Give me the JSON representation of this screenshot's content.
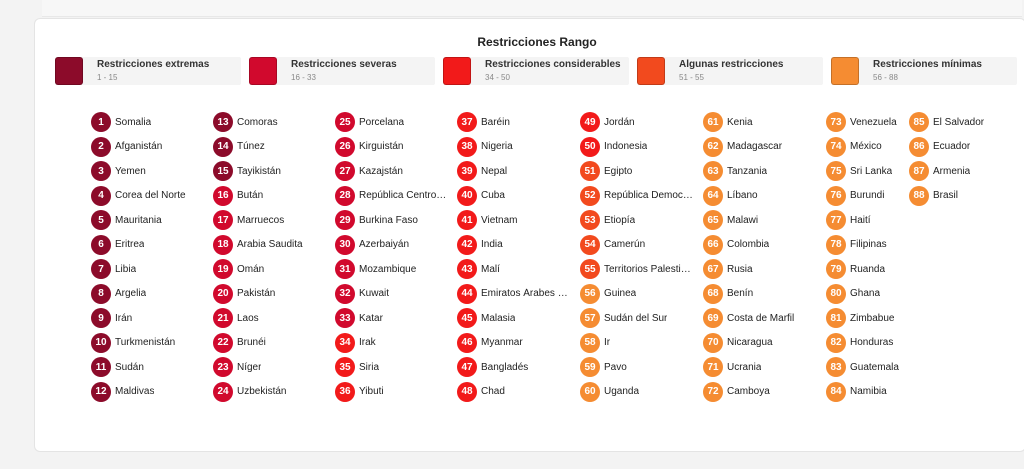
{
  "legend": {
    "title": "Restricciones Rango",
    "items": [
      {
        "label": "Restricciones extremas",
        "range": "1 - 15",
        "color": "#8c0b2a"
      },
      {
        "label": "Restricciones severas",
        "range": "16 - 33",
        "color": "#d1092d"
      },
      {
        "label": "Restricciones considerables",
        "range": "34 - 50",
        "color": "#f21a1a"
      },
      {
        "label": "Algunas restricciones",
        "range": "51 - 55",
        "color": "#f24a1e"
      },
      {
        "label": "Restricciones mínimas",
        "range": "56 - 88",
        "color": "#f58c32"
      }
    ]
  },
  "countries": [
    {
      "rank": "1",
      "name": "Somalia",
      "tier": 0
    },
    {
      "rank": "2",
      "name": "Afganistán",
      "tier": 0
    },
    {
      "rank": "3",
      "name": "Yemen",
      "tier": 0
    },
    {
      "rank": "4",
      "name": "Corea del Norte",
      "tier": 0
    },
    {
      "rank": "5",
      "name": "Mauritania",
      "tier": 0
    },
    {
      "rank": "6",
      "name": "Eritrea",
      "tier": 0
    },
    {
      "rank": "7",
      "name": "Libia",
      "tier": 0
    },
    {
      "rank": "8",
      "name": "Argelia",
      "tier": 0
    },
    {
      "rank": "9",
      "name": "Irán",
      "tier": 0
    },
    {
      "rank": "10",
      "name": "Turkmenistán",
      "tier": 0
    },
    {
      "rank": "11",
      "name": "Sudán",
      "tier": 0
    },
    {
      "rank": "12",
      "name": "Maldivas",
      "tier": 0
    },
    {
      "rank": "13",
      "name": "Comoras",
      "tier": 0
    },
    {
      "rank": "14",
      "name": "Túnez",
      "tier": 0
    },
    {
      "rank": "15",
      "name": "Tayikistán",
      "tier": 0
    },
    {
      "rank": "16",
      "name": "Bután",
      "tier": 1
    },
    {
      "rank": "17",
      "name": "Marruecos",
      "tier": 1
    },
    {
      "rank": "18",
      "name": "Arabia Saudita",
      "tier": 1
    },
    {
      "rank": "19",
      "name": "Omán",
      "tier": 1
    },
    {
      "rank": "20",
      "name": "Pakistán",
      "tier": 1
    },
    {
      "rank": "21",
      "name": "Laos",
      "tier": 1
    },
    {
      "rank": "22",
      "name": "Brunéi",
      "tier": 1
    },
    {
      "rank": "23",
      "name": "Níger",
      "tier": 1
    },
    {
      "rank": "24",
      "name": "Uzbekistán",
      "tier": 1
    },
    {
      "rank": "25",
      "name": "Porcelana",
      "tier": 1
    },
    {
      "rank": "26",
      "name": "Kirguistán",
      "tier": 1
    },
    {
      "rank": "27",
      "name": "Kazajstán",
      "tier": 1
    },
    {
      "rank": "28",
      "name": "República Centro…",
      "tier": 1
    },
    {
      "rank": "29",
      "name": "Burkina Faso",
      "tier": 1
    },
    {
      "rank": "30",
      "name": "Azerbaiyán",
      "tier": 1
    },
    {
      "rank": "31",
      "name": "Mozambique",
      "tier": 1
    },
    {
      "rank": "32",
      "name": "Kuwait",
      "tier": 1
    },
    {
      "rank": "33",
      "name": "Katar",
      "tier": 1
    },
    {
      "rank": "34",
      "name": "Irak",
      "tier": 2
    },
    {
      "rank": "35",
      "name": "Siria",
      "tier": 2
    },
    {
      "rank": "36",
      "name": "Yibuti",
      "tier": 2
    },
    {
      "rank": "37",
      "name": "Baréin",
      "tier": 2
    },
    {
      "rank": "38",
      "name": "Nigeria",
      "tier": 2
    },
    {
      "rank": "39",
      "name": "Nepal",
      "tier": 2
    },
    {
      "rank": "40",
      "name": "Cuba",
      "tier": 2
    },
    {
      "rank": "41",
      "name": "Vietnam",
      "tier": 2
    },
    {
      "rank": "42",
      "name": "India",
      "tier": 2
    },
    {
      "rank": "43",
      "name": "Malí",
      "tier": 2
    },
    {
      "rank": "44",
      "name": "Emiratos Árabes …",
      "tier": 2
    },
    {
      "rank": "45",
      "name": "Malasia",
      "tier": 2
    },
    {
      "rank": "46",
      "name": "Myanmar",
      "tier": 2
    },
    {
      "rank": "47",
      "name": "Bangladés",
      "tier": 2
    },
    {
      "rank": "48",
      "name": "Chad",
      "tier": 2
    },
    {
      "rank": "49",
      "name": "Jordán",
      "tier": 2
    },
    {
      "rank": "50",
      "name": "Indonesia",
      "tier": 2
    },
    {
      "rank": "51",
      "name": "Egipto",
      "tier": 3
    },
    {
      "rank": "52",
      "name": "República Democ…",
      "tier": 3
    },
    {
      "rank": "53",
      "name": "Etiopía",
      "tier": 3
    },
    {
      "rank": "54",
      "name": "Camerún",
      "tier": 3
    },
    {
      "rank": "55",
      "name": "Territorios Palesti…",
      "tier": 3
    },
    {
      "rank": "56",
      "name": "Guinea",
      "tier": 4
    },
    {
      "rank": "57",
      "name": "Sudán del Sur",
      "tier": 4
    },
    {
      "rank": "58",
      "name": "Ir",
      "tier": 4
    },
    {
      "rank": "59",
      "name": "Pavo",
      "tier": 4
    },
    {
      "rank": "60",
      "name": "Uganda",
      "tier": 4
    },
    {
      "rank": "61",
      "name": "Kenia",
      "tier": 4
    },
    {
      "rank": "62",
      "name": "Madagascar",
      "tier": 4
    },
    {
      "rank": "63",
      "name": "Tanzania",
      "tier": 4
    },
    {
      "rank": "64",
      "name": "Líbano",
      "tier": 4
    },
    {
      "rank": "65",
      "name": "Malawi",
      "tier": 4
    },
    {
      "rank": "66",
      "name": "Colombia",
      "tier": 4
    },
    {
      "rank": "67",
      "name": "Rusia",
      "tier": 4
    },
    {
      "rank": "68",
      "name": "Benín",
      "tier": 4
    },
    {
      "rank": "69",
      "name": "Costa de Marfil",
      "tier": 4
    },
    {
      "rank": "70",
      "name": "Nicaragua",
      "tier": 4
    },
    {
      "rank": "71",
      "name": "Ucrania",
      "tier": 4
    },
    {
      "rank": "72",
      "name": "Camboya",
      "tier": 4
    },
    {
      "rank": "73",
      "name": "Venezuela",
      "tier": 4
    },
    {
      "rank": "74",
      "name": "México",
      "tier": 4
    },
    {
      "rank": "75",
      "name": "Sri Lanka",
      "tier": 4
    },
    {
      "rank": "76",
      "name": "Burundi",
      "tier": 4
    },
    {
      "rank": "77",
      "name": "Haití",
      "tier": 4
    },
    {
      "rank": "78",
      "name": "Filipinas",
      "tier": 4
    },
    {
      "rank": "79",
      "name": "Ruanda",
      "tier": 4
    },
    {
      "rank": "80",
      "name": "Ghana",
      "tier": 4
    },
    {
      "rank": "81",
      "name": "Zimbabue",
      "tier": 4
    },
    {
      "rank": "82",
      "name": "Honduras",
      "tier": 4
    },
    {
      "rank": "83",
      "name": "Guatemala",
      "tier": 4
    },
    {
      "rank": "84",
      "name": "Namibia",
      "tier": 4
    },
    {
      "rank": "85",
      "name": "El Salvador",
      "tier": 4
    },
    {
      "rank": "86",
      "name": "Ecuador",
      "tier": 4
    },
    {
      "rank": "87",
      "name": "Armenia",
      "tier": 4
    },
    {
      "rank": "88",
      "name": "Brasil",
      "tier": 4
    }
  ]
}
